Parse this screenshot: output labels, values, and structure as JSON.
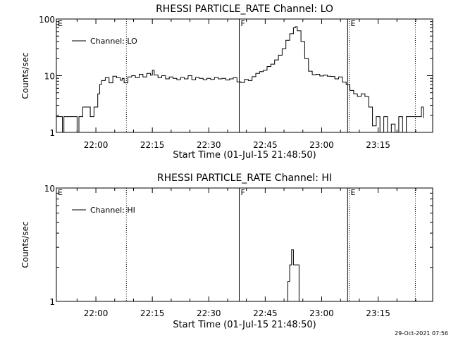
{
  "footer_timestamp": "29-Oct-2021 07:56",
  "chart_data": [
    {
      "type": "line",
      "title": "RHESSI PARTICLE_RATE Channel: LO",
      "xlabel": "Start Time (01-Jul-15 21:48:50)",
      "ylabel": "Counts/sec",
      "y_scale": "log",
      "ylim": [
        1,
        100
      ],
      "yticks": [
        {
          "v": 1,
          "label": "1"
        },
        {
          "v": 10,
          "label": "10"
        },
        {
          "v": 100,
          "label": "100"
        }
      ],
      "xlim": [
        0,
        100
      ],
      "xticks": [
        {
          "v": 10.5,
          "label": "22:00"
        },
        {
          "v": 25.5,
          "label": "22:15"
        },
        {
          "v": 40.5,
          "label": "22:30"
        },
        {
          "v": 55.5,
          "label": "22:45"
        },
        {
          "v": 70.5,
          "label": "23:00"
        },
        {
          "v": 85.5,
          "label": "23:15"
        }
      ],
      "legend": {
        "label": "Channel: LO",
        "position": "top-left"
      },
      "markers": [
        {
          "x": 0,
          "label": "E",
          "style": "dotted"
        },
        {
          "x": 18.6,
          "label": "",
          "style": "dotted"
        },
        {
          "x": 48.6,
          "label": "F",
          "style": "solid"
        },
        {
          "x": 77.4,
          "label": "",
          "style": "solid"
        },
        {
          "x": 77.8,
          "label": "E",
          "style": "dotted"
        },
        {
          "x": 95.4,
          "label": "",
          "style": "dotted"
        }
      ],
      "series": [
        {
          "name": "Channel: LO",
          "step": true,
          "points": [
            [
              0,
              1.9
            ],
            [
              1,
              1.9
            ],
            [
              1.6,
              1.0
            ],
            [
              2,
              1.9
            ],
            [
              3,
              1.9
            ],
            [
              4,
              1.9
            ],
            [
              5,
              1.9
            ],
            [
              5.5,
              1.0
            ],
            [
              6,
              1.9
            ],
            [
              7,
              2.8
            ],
            [
              8,
              2.8
            ],
            [
              9,
              1.9
            ],
            [
              10,
              2.8
            ],
            [
              11,
              4.8
            ],
            [
              11.5,
              7
            ],
            [
              12,
              8.2
            ],
            [
              13,
              9.2
            ],
            [
              14,
              7.5
            ],
            [
              15,
              9.8
            ],
            [
              16,
              9.2
            ],
            [
              17,
              8.3
            ],
            [
              17.5,
              9
            ],
            [
              18,
              7.5
            ],
            [
              19,
              9.5
            ],
            [
              20,
              10
            ],
            [
              21,
              9.2
            ],
            [
              22,
              10.6
            ],
            [
              23,
              9.5
            ],
            [
              24,
              11
            ],
            [
              25,
              10.2
            ],
            [
              25.5,
              12.5
            ],
            [
              26,
              10.3
            ],
            [
              27,
              9.2
            ],
            [
              28,
              10
            ],
            [
              29,
              8.8
            ],
            [
              30,
              9.5
            ],
            [
              31,
              9
            ],
            [
              32,
              8.5
            ],
            [
              33,
              9.3
            ],
            [
              34,
              8.8
            ],
            [
              35,
              10
            ],
            [
              36,
              8.5
            ],
            [
              37,
              9.3
            ],
            [
              38,
              9
            ],
            [
              39,
              8.5
            ],
            [
              40,
              9
            ],
            [
              41,
              8.6
            ],
            [
              42,
              9.3
            ],
            [
              43,
              8.8
            ],
            [
              44,
              9
            ],
            [
              45,
              8.4
            ],
            [
              46,
              8.8
            ],
            [
              47,
              9.2
            ],
            [
              48,
              7.8
            ],
            [
              49,
              7.6
            ],
            [
              50,
              8.6
            ],
            [
              51,
              8.2
            ],
            [
              52,
              9.6
            ],
            [
              53,
              11
            ],
            [
              54,
              11.8
            ],
            [
              55,
              12.5
            ],
            [
              56,
              14.5
            ],
            [
              57,
              16
            ],
            [
              58,
              19
            ],
            [
              59,
              23
            ],
            [
              60,
              30
            ],
            [
              61,
              42
            ],
            [
              62,
              55
            ],
            [
              63,
              70
            ],
            [
              63.5,
              73
            ],
            [
              64,
              62
            ],
            [
              65,
              40
            ],
            [
              66,
              20
            ],
            [
              67,
              12
            ],
            [
              68,
              10.4
            ],
            [
              69,
              10.6
            ],
            [
              70,
              9.9
            ],
            [
              71,
              10.2
            ],
            [
              72,
              9.8
            ],
            [
              73,
              9.7
            ],
            [
              74,
              8.8
            ],
            [
              75,
              9.5
            ],
            [
              76,
              7.7
            ],
            [
              77,
              7
            ],
            [
              78,
              5.5
            ],
            [
              79,
              4.8
            ],
            [
              80,
              4.3
            ],
            [
              81,
              4.8
            ],
            [
              82,
              4.3
            ],
            [
              83,
              2.8
            ],
            [
              84,
              1.3
            ],
            [
              85,
              1.9
            ],
            [
              86,
              1.0
            ],
            [
              87,
              1.9
            ],
            [
              88,
              1.0
            ],
            [
              89,
              1.4
            ],
            [
              90,
              1.0
            ],
            [
              91,
              1.9
            ],
            [
              92,
              1.0
            ],
            [
              93,
              1.9
            ],
            [
              94,
              1.9
            ],
            [
              95,
              1.9
            ],
            [
              96,
              1.9
            ],
            [
              97,
              2.8
            ],
            [
              97.5,
              1.8
            ]
          ]
        }
      ]
    },
    {
      "type": "line",
      "title": "RHESSI PARTICLE_RATE Channel: HI",
      "xlabel": "Start Time (01-Jul-15 21:48:50)",
      "ylabel": "Counts/sec",
      "y_scale": "log",
      "ylim": [
        1,
        10
      ],
      "yticks": [
        {
          "v": 1,
          "label": "1"
        },
        {
          "v": 10,
          "label": "10"
        }
      ],
      "xlim": [
        0,
        100
      ],
      "xticks": [
        {
          "v": 10.5,
          "label": "22:00"
        },
        {
          "v": 25.5,
          "label": "22:15"
        },
        {
          "v": 40.5,
          "label": "22:30"
        },
        {
          "v": 55.5,
          "label": "22:45"
        },
        {
          "v": 70.5,
          "label": "23:00"
        },
        {
          "v": 85.5,
          "label": "23:15"
        }
      ],
      "legend": {
        "label": "Channel: HI",
        "position": "top-left"
      },
      "markers": [
        {
          "x": 0,
          "label": "E",
          "style": "dotted"
        },
        {
          "x": 18.6,
          "label": "",
          "style": "dotted"
        },
        {
          "x": 48.6,
          "label": "F",
          "style": "solid"
        },
        {
          "x": 77.4,
          "label": "",
          "style": "solid"
        },
        {
          "x": 77.8,
          "label": "E",
          "style": "dotted"
        },
        {
          "x": 95.4,
          "label": "",
          "style": "dotted"
        }
      ],
      "series": [
        {
          "name": "Channel: HI",
          "step": true,
          "points": [
            [
              61,
              1.0
            ],
            [
              61.5,
              1.5
            ],
            [
              62,
              2.1
            ],
            [
              62.5,
              2.85
            ],
            [
              63,
              2.1
            ],
            [
              63.5,
              2.1
            ],
            [
              64,
              2.1
            ],
            [
              64.5,
              1.0
            ]
          ]
        }
      ]
    }
  ]
}
